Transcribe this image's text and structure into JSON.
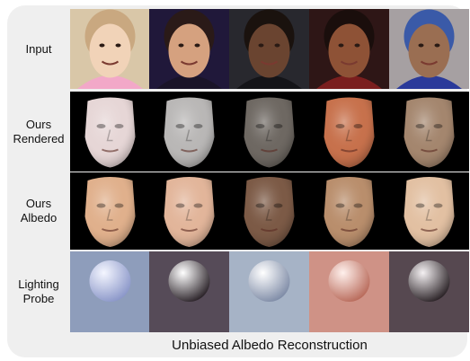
{
  "row_labels": {
    "input": "Input",
    "rendered": "Ours\nRendered",
    "albedo": "Ours\nAlbedo",
    "lighting": "Lighting\nProbe"
  },
  "caption": "Unbiased Albedo Reconstruction",
  "columns": [
    {
      "input_bg": "#d9c7a8",
      "skin": "#f1d3b8",
      "hair": "#c9a880",
      "clothing": "#f2a8c8",
      "rendered": "#e6d6d6",
      "albedo": "#e0b08c",
      "probe_bg": "#8e9dbb",
      "probe_light": "#f4f6ff",
      "probe_dark": "#8a96c8"
    },
    {
      "input_bg": "#20183a",
      "skin": "#d5a17f",
      "hair": "#2a1a18",
      "clothing": "#1a1428",
      "rendered": "#b9b7b6",
      "albedo": "#e2b59a",
      "probe_bg": "#564b58",
      "probe_light": "#ffffff",
      "probe_dark": "#2a2228"
    },
    {
      "input_bg": "#28282e",
      "skin": "#6a4430",
      "hair": "#1a120e",
      "clothing": "#141418",
      "rendered": "#6e6862",
      "albedo": "#7c5a46",
      "probe_bg": "#a6b3c6",
      "probe_light": "#ffffff",
      "probe_dark": "#7e8ba6"
    },
    {
      "input_bg": "#2e1616",
      "skin": "#8e5236",
      "hair": "#1a0e0c",
      "clothing": "#7a1e1e",
      "rendered": "#c7714c",
      "albedo": "#b98e6c",
      "probe_bg": "#cf9286",
      "probe_light": "#fff0ec",
      "probe_dark": "#b86a5a"
    },
    {
      "input_bg": "#a6a0a2",
      "skin": "#9a6e52",
      "hair": "#3a5aa8",
      "clothing": "#2a3a9a",
      "rendered": "#a4866e",
      "albedo": "#e2c0a2",
      "probe_bg": "#564850",
      "probe_light": "#f4f0f2",
      "probe_dark": "#2a2226"
    }
  ]
}
